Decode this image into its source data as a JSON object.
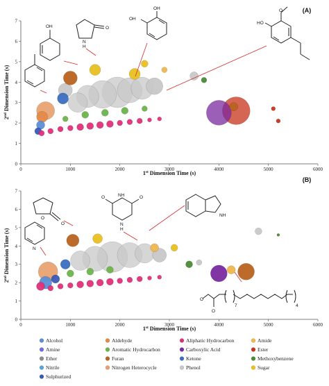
{
  "panels": [
    {
      "label": "(A)"
    },
    {
      "label": "(B)"
    }
  ],
  "axes": {
    "xlabel_prefix": "1",
    "xlabel_sup": "st",
    "xlabel_rest": " Dimension Time (s)",
    "ylabel_prefix": "2",
    "ylabel_sup": "nd",
    "ylabel_rest": " Dimension Time (s)",
    "xticks": [
      "0",
      "1000",
      "2000",
      "3000",
      "4000",
      "5000",
      "6000"
    ],
    "yticks": [
      "0",
      "1",
      "2",
      "3",
      "4",
      "5",
      "6",
      "7"
    ]
  },
  "molecule_labels": {
    "a_toluene": "",
    "a_phenol": "OH",
    "a_pyrrolidone_nh": "N",
    "a_pyrrolidone_h": "H",
    "a_pyrrolidone_o": "O",
    "a_catechol_oh1": "OH",
    "a_catechol_oh2": "OH",
    "a_guaiacol_ho": "HO",
    "a_guaiacol_o": "O",
    "b_lactone_o1": "O",
    "b_lactone_o2": "O",
    "b_pyridine_n": "N",
    "b_triazine_o1": "O",
    "b_triazine_o2": "O",
    "b_triazine_nh1": "NH",
    "b_triazine_nh2": "N",
    "b_triazine_h": "H",
    "b_indole_nh": "NH",
    "b_ester_o1": "O",
    "b_ester_o2": "O",
    "b_ester_sub1": "7",
    "b_ester_sub2": "4"
  },
  "legend": [
    {
      "label": "Alcohol",
      "color": "#5b8fd6"
    },
    {
      "label": "Aldehyde",
      "color": "#e38a4a"
    },
    {
      "label": "Aliphatic Hydrocarbon",
      "color": "#e0307a"
    },
    {
      "label": "Amide",
      "color": "#f0b650"
    },
    {
      "label": "Amine",
      "color": "#6f6fd8"
    },
    {
      "label": "Aromatic Hydrocarbon",
      "color": "#6bb44a"
    },
    {
      "label": "Carboxylic Acid",
      "color": "#7a2aa0"
    },
    {
      "label": "Ester",
      "color": "#c8331b"
    },
    {
      "label": "Ether",
      "color": "#8c8c8c"
    },
    {
      "label": "Furan",
      "color": "#b9631f"
    },
    {
      "label": "Ketone",
      "color": "#3a6fc0"
    },
    {
      "label": "Methoxybenzene",
      "color": "#4a8a35"
    },
    {
      "label": "Nitrile",
      "color": "#55a7d0"
    },
    {
      "label": "Nitrogen Heterocycle",
      "color": "#e6a070"
    },
    {
      "label": "Phenol",
      "color": "#c8c8c8"
    },
    {
      "label": "Sugar",
      "color": "#e8c020"
    },
    {
      "label": "Sulphurized",
      "color": "#3a58b8"
    }
  ],
  "chart_data": [
    {
      "type": "scatter",
      "panel": "(A)",
      "xlabel": "1st Dimension Time (s)",
      "ylabel": "2nd Dimension Time (s)",
      "xlim": [
        0,
        6000
      ],
      "ylim": [
        0,
        7
      ],
      "grid": false,
      "points": [
        {
          "x": 350,
          "y": 1.6,
          "r": 5,
          "cls": "Sulphurized"
        },
        {
          "x": 400,
          "y": 1.9,
          "r": 6,
          "cls": "Alcohol"
        },
        {
          "x": 430,
          "y": 2.3,
          "r": 8,
          "cls": "Aldehyde"
        },
        {
          "x": 500,
          "y": 2.6,
          "r": 13,
          "cls": "Aldehyde"
        },
        {
          "x": 420,
          "y": 1.5,
          "r": 4,
          "cls": "Aliphatic Hydrocarbon"
        },
        {
          "x": 600,
          "y": 1.6,
          "r": 4,
          "cls": "Aliphatic Hydrocarbon"
        },
        {
          "x": 800,
          "y": 1.7,
          "r": 4,
          "cls": "Aliphatic Hydrocarbon"
        },
        {
          "x": 1000,
          "y": 1.75,
          "r": 4,
          "cls": "Aliphatic Hydrocarbon"
        },
        {
          "x": 1200,
          "y": 1.8,
          "r": 5,
          "cls": "Aliphatic Hydrocarbon"
        },
        {
          "x": 1400,
          "y": 1.85,
          "r": 5,
          "cls": "Aliphatic Hydrocarbon"
        },
        {
          "x": 1600,
          "y": 1.9,
          "r": 5,
          "cls": "Aliphatic Hydrocarbon"
        },
        {
          "x": 1800,
          "y": 1.95,
          "r": 5,
          "cls": "Aliphatic Hydrocarbon"
        },
        {
          "x": 2000,
          "y": 2.0,
          "r": 4,
          "cls": "Aliphatic Hydrocarbon"
        },
        {
          "x": 2200,
          "y": 2.05,
          "r": 4,
          "cls": "Aliphatic Hydrocarbon"
        },
        {
          "x": 2400,
          "y": 2.1,
          "r": 4,
          "cls": "Aliphatic Hydrocarbon"
        },
        {
          "x": 2600,
          "y": 2.15,
          "r": 3,
          "cls": "Aliphatic Hydrocarbon"
        },
        {
          "x": 2800,
          "y": 2.2,
          "r": 3,
          "cls": "Aliphatic Hydrocarbon"
        },
        {
          "x": 900,
          "y": 2.2,
          "r": 4,
          "cls": "Aromatic Hydrocarbon"
        },
        {
          "x": 1300,
          "y": 2.4,
          "r": 5,
          "cls": "Aromatic Hydrocarbon"
        },
        {
          "x": 1700,
          "y": 2.5,
          "r": 5,
          "cls": "Aromatic Hydrocarbon"
        },
        {
          "x": 2100,
          "y": 2.6,
          "r": 5,
          "cls": "Aromatic Hydrocarbon"
        },
        {
          "x": 2500,
          "y": 2.7,
          "r": 4,
          "cls": "Aromatic Hydrocarbon"
        },
        {
          "x": 850,
          "y": 3.2,
          "r": 8,
          "cls": "Ketone"
        },
        {
          "x": 900,
          "y": 3.6,
          "r": 10,
          "cls": "Phenol"
        },
        {
          "x": 1150,
          "y": 3.0,
          "r": 14,
          "cls": "Phenol"
        },
        {
          "x": 1350,
          "y": 3.3,
          "r": 16,
          "cls": "Phenol"
        },
        {
          "x": 1650,
          "y": 3.4,
          "r": 20,
          "cls": "Phenol"
        },
        {
          "x": 1950,
          "y": 3.5,
          "r": 22,
          "cls": "Phenol"
        },
        {
          "x": 2200,
          "y": 3.6,
          "r": 18,
          "cls": "Phenol"
        },
        {
          "x": 2450,
          "y": 3.7,
          "r": 16,
          "cls": "Phenol"
        },
        {
          "x": 2700,
          "y": 3.8,
          "r": 12,
          "cls": "Phenol"
        },
        {
          "x": 1000,
          "y": 4.2,
          "r": 10,
          "cls": "Furan"
        },
        {
          "x": 1500,
          "y": 4.6,
          "r": 8,
          "cls": "Sugar"
        },
        {
          "x": 2300,
          "y": 4.4,
          "r": 8,
          "cls": "Sugar"
        },
        {
          "x": 2500,
          "y": 4.9,
          "r": 5,
          "cls": "Sugar"
        },
        {
          "x": 2900,
          "y": 4.6,
          "r": 4,
          "cls": "Amide"
        },
        {
          "x": 3500,
          "y": 4.3,
          "r": 6,
          "cls": "Phenol"
        },
        {
          "x": 3700,
          "y": 4.1,
          "r": 4,
          "cls": "Methoxybenzene"
        },
        {
          "x": 4000,
          "y": 2.5,
          "r": 18,
          "cls": "Carboxylic Acid"
        },
        {
          "x": 4350,
          "y": 2.6,
          "r": 20,
          "cls": "Ester"
        },
        {
          "x": 4300,
          "y": 2.8,
          "r": 6,
          "cls": "Furan"
        },
        {
          "x": 5100,
          "y": 2.7,
          "r": 3,
          "cls": "Ester"
        },
        {
          "x": 5200,
          "y": 2.1,
          "r": 3,
          "cls": "Ester"
        }
      ]
    },
    {
      "type": "scatter",
      "panel": "(B)",
      "xlabel": "1st Dimension Time (s)",
      "ylabel": "2nd Dimension Time (s)",
      "xlim": [
        0,
        6000
      ],
      "ylim": [
        0,
        7
      ],
      "grid": false,
      "points": [
        {
          "x": 400,
          "y": 1.8,
          "r": 6,
          "cls": "Aliphatic Hydrocarbon"
        },
        {
          "x": 500,
          "y": 2.0,
          "r": 9,
          "cls": "Alcohol"
        },
        {
          "x": 550,
          "y": 2.6,
          "r": 14,
          "cls": "Aldehyde"
        },
        {
          "x": 700,
          "y": 2.2,
          "r": 6,
          "cls": "Sulphurized"
        },
        {
          "x": 600,
          "y": 1.7,
          "r": 4,
          "cls": "Aliphatic Hydrocarbon"
        },
        {
          "x": 800,
          "y": 1.8,
          "r": 4,
          "cls": "Aliphatic Hydrocarbon"
        },
        {
          "x": 1000,
          "y": 1.85,
          "r": 4,
          "cls": "Aliphatic Hydrocarbon"
        },
        {
          "x": 1200,
          "y": 1.9,
          "r": 5,
          "cls": "Aliphatic Hydrocarbon"
        },
        {
          "x": 1400,
          "y": 1.95,
          "r": 5,
          "cls": "Aliphatic Hydrocarbon"
        },
        {
          "x": 1600,
          "y": 2.0,
          "r": 5,
          "cls": "Aliphatic Hydrocarbon"
        },
        {
          "x": 1800,
          "y": 2.05,
          "r": 5,
          "cls": "Aliphatic Hydrocarbon"
        },
        {
          "x": 2000,
          "y": 2.1,
          "r": 4,
          "cls": "Aliphatic Hydrocarbon"
        },
        {
          "x": 2200,
          "y": 2.15,
          "r": 4,
          "cls": "Aliphatic Hydrocarbon"
        },
        {
          "x": 2400,
          "y": 2.2,
          "r": 4,
          "cls": "Aliphatic Hydrocarbon"
        },
        {
          "x": 2600,
          "y": 2.25,
          "r": 3,
          "cls": "Aliphatic Hydrocarbon"
        },
        {
          "x": 2800,
          "y": 2.3,
          "r": 3,
          "cls": "Aliphatic Hydrocarbon"
        },
        {
          "x": 1000,
          "y": 2.5,
          "r": 5,
          "cls": "Aromatic Hydrocarbon"
        },
        {
          "x": 1400,
          "y": 2.6,
          "r": 5,
          "cls": "Aromatic Hydrocarbon"
        },
        {
          "x": 1800,
          "y": 2.7,
          "r": 5,
          "cls": "Aromatic Hydrocarbon"
        },
        {
          "x": 900,
          "y": 3.0,
          "r": 7,
          "cls": "Ketone"
        },
        {
          "x": 1200,
          "y": 3.2,
          "r": 14,
          "cls": "Phenol"
        },
        {
          "x": 1500,
          "y": 3.3,
          "r": 18,
          "cls": "Phenol"
        },
        {
          "x": 1850,
          "y": 3.4,
          "r": 22,
          "cls": "Phenol"
        },
        {
          "x": 2200,
          "y": 3.5,
          "r": 18,
          "cls": "Phenol"
        },
        {
          "x": 2500,
          "y": 3.6,
          "r": 14,
          "cls": "Phenol"
        },
        {
          "x": 2800,
          "y": 3.5,
          "r": 10,
          "cls": "Phenol"
        },
        {
          "x": 1050,
          "y": 4.3,
          "r": 9,
          "cls": "Furan"
        },
        {
          "x": 1550,
          "y": 4.4,
          "r": 7,
          "cls": "Sugar"
        },
        {
          "x": 2700,
          "y": 3.9,
          "r": 6,
          "cls": "Amide"
        },
        {
          "x": 3100,
          "y": 3.9,
          "r": 5,
          "cls": "Sugar"
        },
        {
          "x": 3400,
          "y": 3.0,
          "r": 5,
          "cls": "Methoxybenzene"
        },
        {
          "x": 3600,
          "y": 3.1,
          "r": 4,
          "cls": "Phenol"
        },
        {
          "x": 4000,
          "y": 2.5,
          "r": 12,
          "cls": "Carboxylic Acid"
        },
        {
          "x": 4250,
          "y": 2.7,
          "r": 6,
          "cls": "Amide"
        },
        {
          "x": 4550,
          "y": 2.6,
          "r": 12,
          "cls": "Furan"
        },
        {
          "x": 4800,
          "y": 4.8,
          "r": 5,
          "cls": "Phenol"
        },
        {
          "x": 5200,
          "y": 4.6,
          "r": 2,
          "cls": "Methoxybenzene"
        }
      ]
    }
  ]
}
